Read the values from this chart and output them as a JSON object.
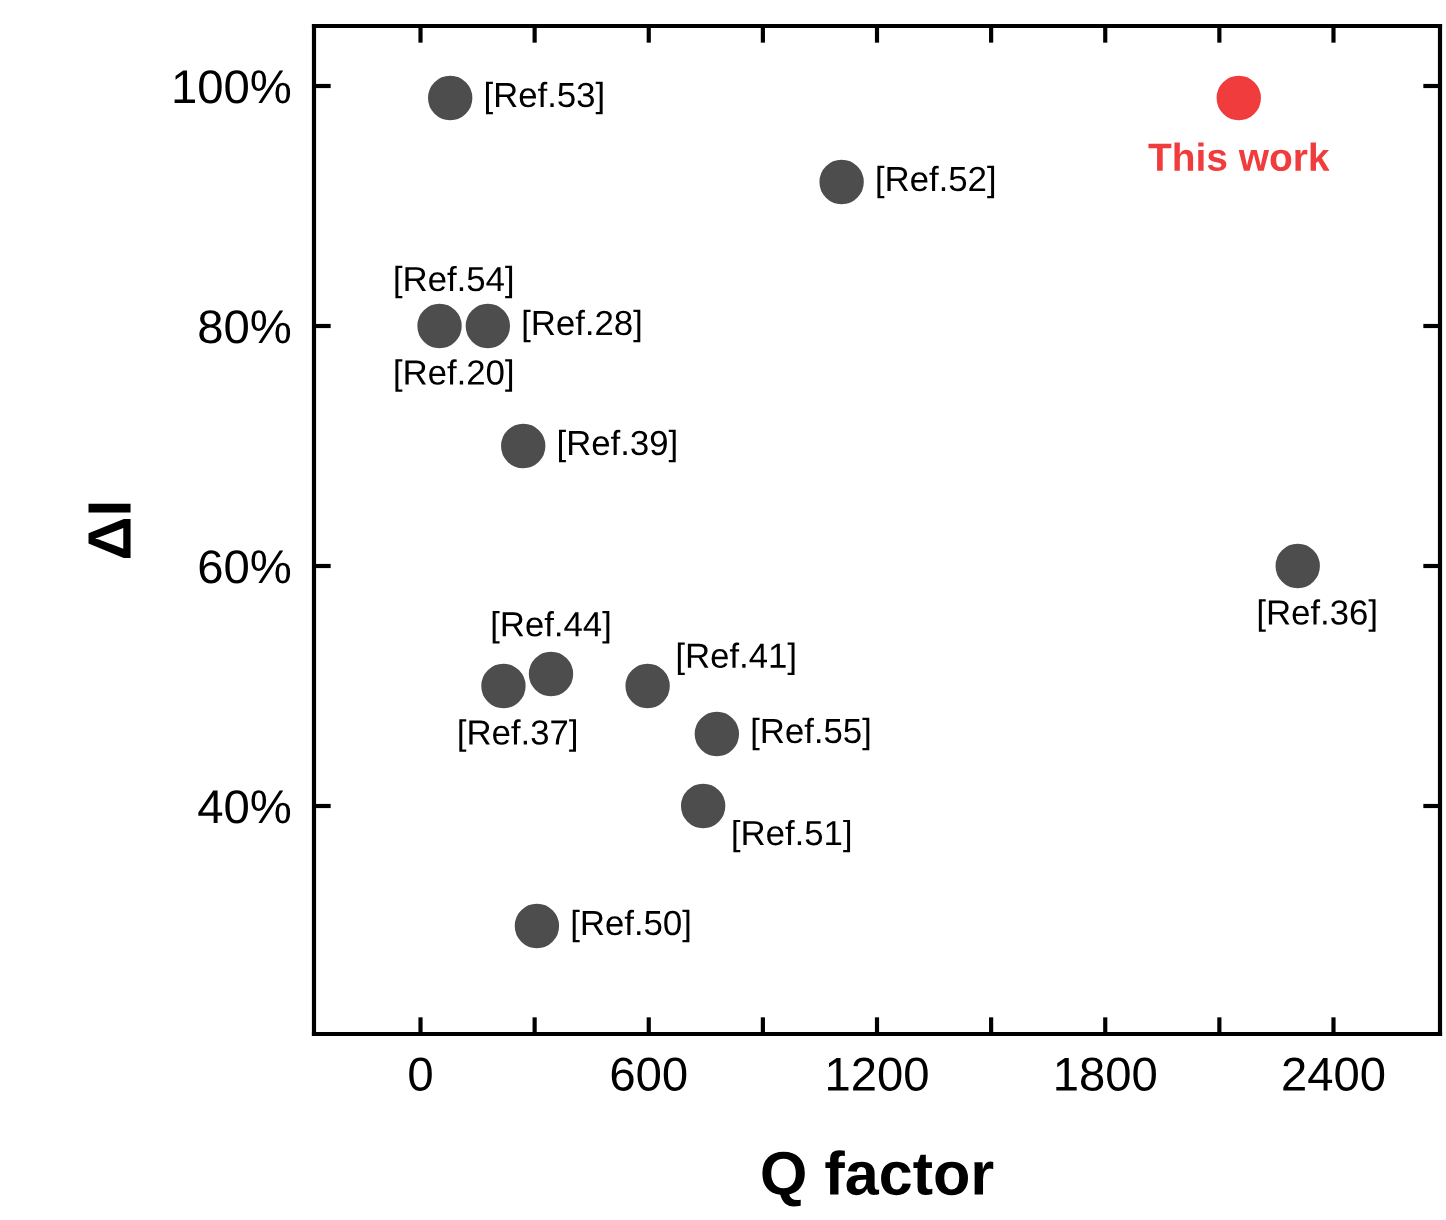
{
  "chart_data": {
    "type": "scatter",
    "xlabel": "Q factor",
    "ylabel": "ΔI",
    "xlim": [
      -280,
      2680
    ],
    "ylim": [
      21,
      105
    ],
    "xticks": [
      0,
      {
        "value": 300,
        "label": null
      },
      600,
      {
        "value": 900,
        "label": null
      },
      1200,
      {
        "value": 1500,
        "label": null
      },
      1800,
      {
        "value": 2100,
        "label": null
      },
      2400
    ],
    "yticks": [
      {
        "value": 40,
        "label": "40%"
      },
      {
        "value": 60,
        "label": "60%"
      },
      {
        "value": 80,
        "label": "80%"
      },
      {
        "value": 100,
        "label": "100%"
      }
    ],
    "grid": false,
    "legend": false,
    "marker": "circle",
    "series": [
      {
        "color": "#4d4d4d",
        "x": [
          78,
          1107,
          50,
          177,
          270,
          2306,
          343,
          218,
          597,
          779,
          743,
          306
        ],
        "values": [
          99,
          92,
          80,
          80,
          70,
          60,
          51,
          50,
          50,
          46,
          40,
          30
        ]
      },
      {
        "name": "This work",
        "color": "#f03c3c",
        "x": [
          2151
        ],
        "values": [
          99
        ]
      }
    ],
    "annotations": [
      {
        "text": "[Ref.53]",
        "x": 78,
        "y": 99
      },
      {
        "text": "[Ref.52]",
        "x": 1107,
        "y": 92
      },
      {
        "text": "[Ref.54]",
        "x": 50,
        "y": 80
      },
      {
        "text": "[Ref.20]",
        "x": 50,
        "y": 80
      },
      {
        "text": "[Ref.28]",
        "x": 177,
        "y": 80
      },
      {
        "text": "[Ref.39]",
        "x": 270,
        "y": 70
      },
      {
        "text": "[Ref.36]",
        "x": 2306,
        "y": 60
      },
      {
        "text": "[Ref.44]",
        "x": 343,
        "y": 51
      },
      {
        "text": "[Ref.37]",
        "x": 218,
        "y": 50
      },
      {
        "text": "[Ref.41]",
        "x": 597,
        "y": 50
      },
      {
        "text": "[Ref.55]",
        "x": 779,
        "y": 46
      },
      {
        "text": "[Ref.51]",
        "x": 743,
        "y": 40
      },
      {
        "text": "[Ref.50]",
        "x": 306,
        "y": 30
      }
    ]
  }
}
